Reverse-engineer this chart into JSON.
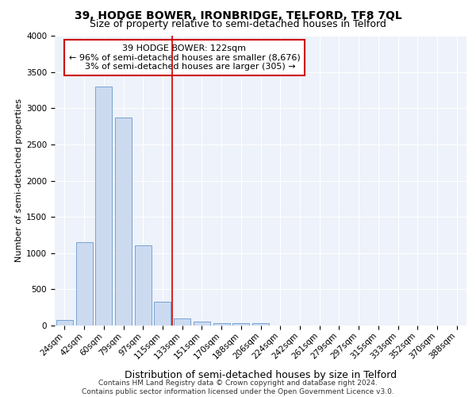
{
  "title1": "39, HODGE BOWER, IRONBRIDGE, TELFORD, TF8 7QL",
  "title2": "Size of property relative to semi-detached houses in Telford",
  "xlabel": "Distribution of semi-detached houses by size in Telford",
  "ylabel": "Number of semi-detached properties",
  "categories": [
    "24sqm",
    "42sqm",
    "60sqm",
    "79sqm",
    "97sqm",
    "115sqm",
    "133sqm",
    "151sqm",
    "170sqm",
    "188sqm",
    "206sqm",
    "224sqm",
    "242sqm",
    "261sqm",
    "279sqm",
    "297sqm",
    "315sqm",
    "333sqm",
    "352sqm",
    "370sqm",
    "388sqm"
  ],
  "values": [
    80,
    1150,
    3300,
    2870,
    1110,
    330,
    100,
    50,
    30,
    30,
    30,
    0,
    0,
    0,
    0,
    0,
    0,
    0,
    0,
    0,
    0
  ],
  "bar_color": "#ccdaf0",
  "bar_edge_color": "#6699cc",
  "property_line_x": 5.5,
  "property_line_color": "#cc0000",
  "annotation_line1": "39 HODGE BOWER: 122sqm",
  "annotation_line2": "← 96% of semi-detached houses are smaller (8,676)",
  "annotation_line3": "    3% of semi-detached houses are larger (305) →",
  "annotation_box_color": "#ffffff",
  "annotation_box_edge": "#cc0000",
  "ylim": [
    0,
    4000
  ],
  "yticks": [
    0,
    500,
    1000,
    1500,
    2000,
    2500,
    3000,
    3500,
    4000
  ],
  "background_color": "#eef2fa",
  "footer": "Contains HM Land Registry data © Crown copyright and database right 2024.\nContains public sector information licensed under the Open Government Licence v3.0.",
  "title1_fontsize": 10,
  "title2_fontsize": 9,
  "xlabel_fontsize": 9,
  "ylabel_fontsize": 8,
  "tick_fontsize": 7.5,
  "annotation_fontsize": 8,
  "footer_fontsize": 6.5
}
